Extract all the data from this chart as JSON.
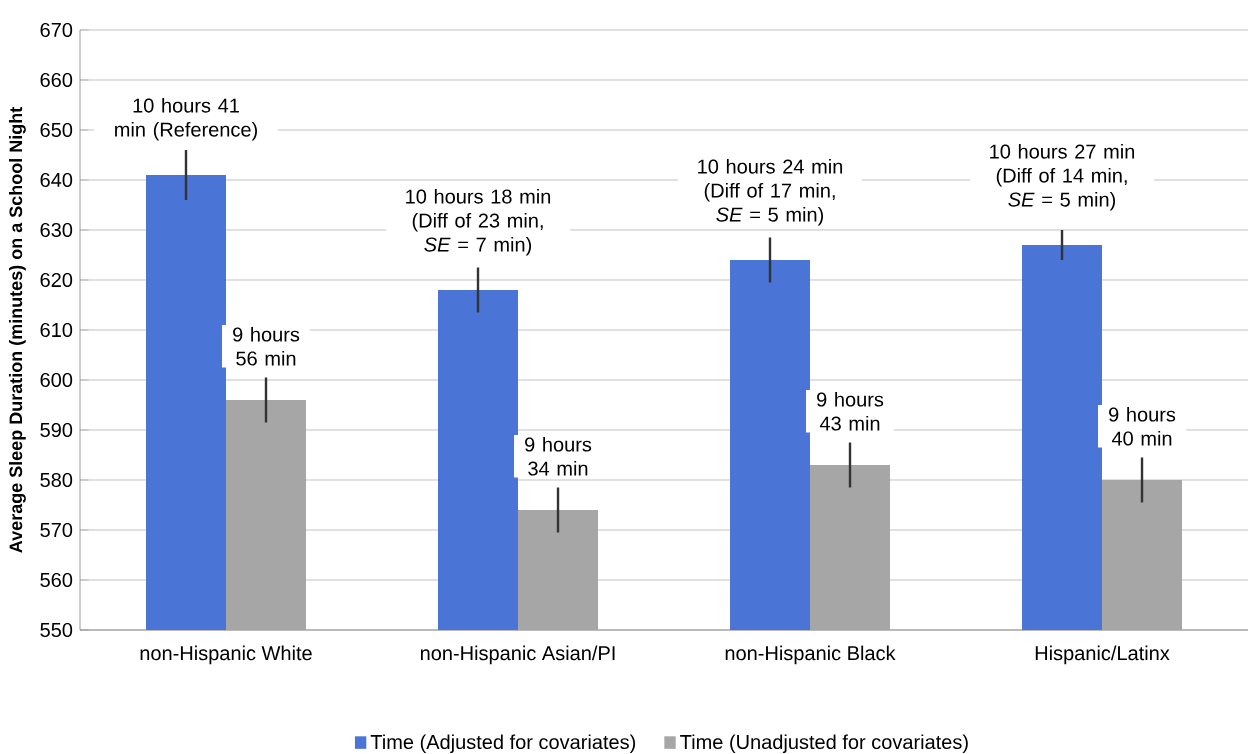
{
  "chart_data": {
    "type": "bar",
    "ylabel": "Average Sleep Duration (minutes) on a School Night",
    "categories": [
      "non-Hispanic White",
      "non-Hispanic Asian/PI",
      "non-Hispanic Black",
      "Hispanic/Latinx"
    ],
    "series": [
      {
        "name": "Time (Adjusted for covariates)",
        "color": "#4a74d6",
        "values": [
          641,
          618,
          624,
          627
        ],
        "errors": [
          5,
          4.5,
          4.5,
          3
        ]
      },
      {
        "name": "Time (Unadjusted for covariates)",
        "color": "#a6a6a6",
        "values": [
          596,
          574,
          583,
          580
        ],
        "errors": [
          4.5,
          4.5,
          4.5,
          4.5
        ]
      }
    ],
    "annotations": [
      {
        "text": "10 hours 41 min (Reference)",
        "x": "non-Hispanic White",
        "y": 641
      },
      {
        "text": "9 hours 56 min",
        "x": "non-Hispanic White",
        "y": 596
      },
      {
        "text": "10 hours 18 min (Diff of 23 min, *SE* = 7 min)",
        "x": "non-Hispanic Asian/PI",
        "y": 618
      },
      {
        "text": "9 hours 34 min",
        "x": "non-Hispanic Asian/PI",
        "y": 574
      },
      {
        "text": "10 hours 24 min (Diff of 17 min, *SE* = 5 min)",
        "x": "non-Hispanic Black",
        "y": 624
      },
      {
        "text": "9 hours 43 min",
        "x": "non-Hispanic Black",
        "y": 583
      },
      {
        "text": "10 hours 27 min (Diff of 14 min, *SE* = 5 min)",
        "x": "Hispanic/Latinx",
        "y": 627
      },
      {
        "text": "9 hours 40 min",
        "x": "Hispanic/Latinx",
        "y": 580
      }
    ],
    "ylim": [
      550,
      670
    ],
    "yticks": [
      550,
      560,
      570,
      580,
      590,
      600,
      610,
      620,
      630,
      640,
      650,
      660,
      670
    ],
    "grid": "y",
    "legend": "bottom"
  }
}
